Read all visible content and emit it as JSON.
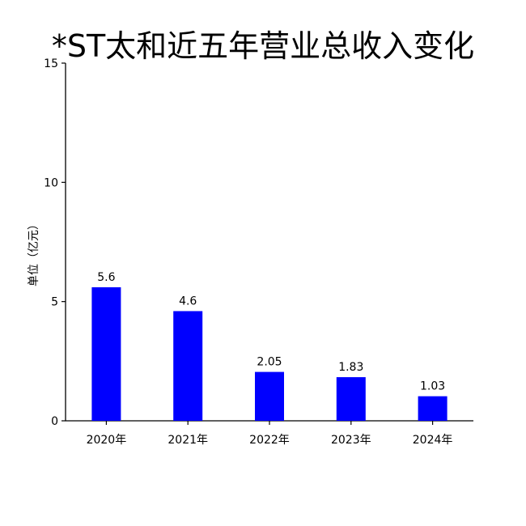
{
  "chart_data": {
    "type": "bar",
    "title": "*ST太和近五年营业总收入变化",
    "xlabel": "",
    "ylabel": "单位（亿元）",
    "categories": [
      "2020年",
      "2021年",
      "2022年",
      "2023年",
      "2024年"
    ],
    "values": [
      5.6,
      4.6,
      2.05,
      1.83,
      1.03
    ],
    "value_labels": [
      "5.6",
      "4.6",
      "2.05",
      "1.83",
      "1.03"
    ],
    "ylim": [
      0,
      15
    ],
    "yticks": [
      0,
      5,
      10,
      15
    ],
    "bar_color": "#0000ff",
    "grid": false,
    "legend": "none"
  }
}
